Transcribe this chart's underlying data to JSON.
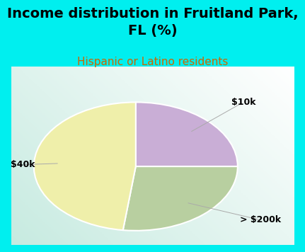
{
  "title": "Income distribution in Fruitland Park,\nFL (%)",
  "subtitle": "Hispanic or Latino residents",
  "slices": [
    {
      "label": "$10k",
      "value": 25,
      "color": "#c9aed6"
    },
    {
      "label": "> $200k",
      "value": 27,
      "color": "#b8cfa0"
    },
    {
      "label": "$40k",
      "value": 48,
      "color": "#efefaa"
    }
  ],
  "background_color": "#00efef",
  "title_fontsize": 14,
  "subtitle_fontsize": 11,
  "subtitle_color": "#cc6600",
  "label_fontsize": 9,
  "startangle": 90
}
